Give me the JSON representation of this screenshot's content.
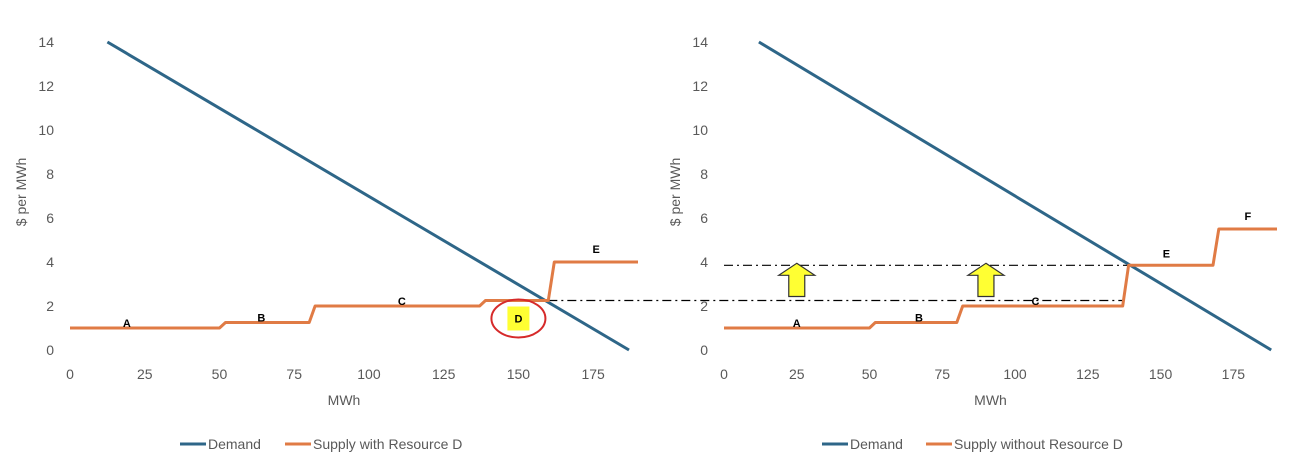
{
  "colors": {
    "demand": "#2E6688",
    "supply": "#E07B45",
    "axis_text": "#595959",
    "highlight_fill": "#FFFF33",
    "highlight_circle": "#D62A2A",
    "arrow_fill": "#FFFF33",
    "arrow_stroke": "#333333",
    "guide_line": "#000000"
  },
  "chart_data": [
    {
      "type": "line",
      "xlabel": "MWh",
      "ylabel": "$ per MWh",
      "xlim": [
        0,
        190
      ],
      "ylim": [
        0,
        14
      ],
      "x_ticks": [
        "0",
        "25",
        "50",
        "75",
        "100",
        "125",
        "150",
        "175"
      ],
      "y_ticks": [
        "0",
        "2",
        "4",
        "6",
        "8",
        "10",
        "12",
        "14"
      ],
      "grid": false,
      "legend": "bottom",
      "series": [
        {
          "name": "Demand",
          "points": [
            [
              12.5,
              14
            ],
            [
              187,
              0
            ]
          ]
        },
        {
          "name": "Supply with Resource D",
          "points": [
            [
              0,
              1
            ],
            [
              50,
              1
            ],
            [
              52,
              1.25
            ],
            [
              80,
              1.25
            ],
            [
              82,
              2
            ],
            [
              137,
              2
            ],
            [
              139,
              2.25
            ],
            [
              160,
              2.25
            ],
            [
              162,
              4
            ],
            [
              190,
              4
            ]
          ]
        }
      ],
      "segment_labels": [
        {
          "text": "A",
          "x": 19,
          "y": 1.05
        },
        {
          "text": "B",
          "x": 64,
          "y": 1.3
        },
        {
          "text": "C",
          "x": 111,
          "y": 2.05
        },
        {
          "text": "D",
          "x": 150,
          "y": 1.25
        },
        {
          "text": "E",
          "x": 176,
          "y": 4.4
        }
      ]
    },
    {
      "type": "line",
      "xlabel": "MWh",
      "ylabel": "$ per MWh",
      "xlim": [
        0,
        190
      ],
      "ylim": [
        0,
        14
      ],
      "x_ticks": [
        "0",
        "25",
        "50",
        "75",
        "100",
        "125",
        "150",
        "175"
      ],
      "y_ticks": [
        "0",
        "2",
        "4",
        "6",
        "8",
        "10",
        "12",
        "14"
      ],
      "grid": false,
      "legend": "bottom",
      "series": [
        {
          "name": "Demand",
          "points": [
            [
              12,
              14
            ],
            [
              188,
              0
            ]
          ]
        },
        {
          "name": "Supply without Resource D",
          "points": [
            [
              0,
              1
            ],
            [
              50,
              1
            ],
            [
              52,
              1.25
            ],
            [
              80,
              1.25
            ],
            [
              82,
              2
            ],
            [
              137,
              2
            ],
            [
              139,
              3.85
            ],
            [
              168,
              3.85
            ],
            [
              170,
              5.5
            ],
            [
              190,
              5.5
            ]
          ]
        }
      ],
      "segment_labels": [
        {
          "text": "A",
          "x": 25,
          "y": 1.05
        },
        {
          "text": "B",
          "x": 67,
          "y": 1.3
        },
        {
          "text": "C",
          "x": 107,
          "y": 2.05
        },
        {
          "text": "E",
          "x": 152,
          "y": 4.2
        },
        {
          "text": "F",
          "x": 180,
          "y": 5.9
        }
      ]
    }
  ],
  "legend_labels": {
    "left_demand": "Demand",
    "left_supply": "Supply with Resource D",
    "right_demand": "Demand",
    "right_supply": "Supply without Resource D"
  }
}
